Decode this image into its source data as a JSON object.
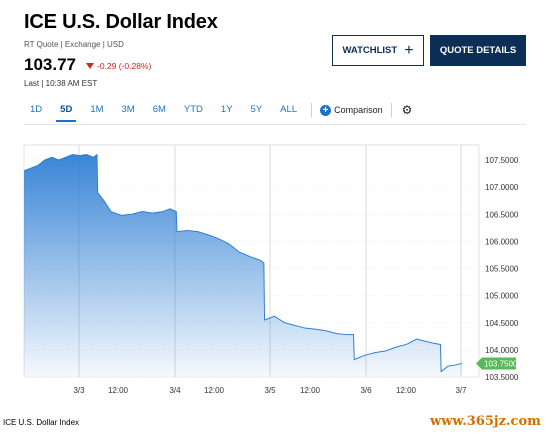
{
  "header": {
    "title": "ICE U.S. Dollar Index",
    "subtitle": "RT Quote | Exchange | USD",
    "price": "103.77",
    "change": "-0.29 (-0.28%)",
    "last_label": "Last | 10:38 AM EST",
    "change_color": "#d0271d"
  },
  "buttons": {
    "watchlist": "WATCHLIST",
    "watchlist_icon": "plus-icon",
    "quote_details": "QUOTE DETAILS",
    "brand_color": "#0c2e57"
  },
  "tabs": {
    "items": [
      "1D",
      "5D",
      "1M",
      "3M",
      "6M",
      "YTD",
      "1Y",
      "5Y",
      "ALL"
    ],
    "active": "5D",
    "comparison": "Comparison",
    "settings_icon": "gear-icon"
  },
  "chart_data": {
    "type": "area",
    "y_ticks": [
      "107.5000",
      "107.0000",
      "106.5000",
      "106.0000",
      "105.5000",
      "105.0000",
      "104.5000",
      "104.0000",
      "103.5000"
    ],
    "x_ticks": [
      "3/3",
      "12:00",
      "3/4",
      "12:00",
      "3/5",
      "12:00",
      "3/6",
      "12:00",
      "3/7"
    ],
    "ylim": [
      103.5,
      107.5
    ],
    "current_value_label": "103.7500",
    "line_color": "#2f7fd4",
    "current_label_color": "#58b85a",
    "series": [
      {
        "values": [
          [
            0.0,
            107.3
          ],
          [
            1.0,
            107.35
          ],
          [
            2.0,
            107.4
          ],
          [
            3.0,
            107.5
          ],
          [
            4.0,
            107.55
          ],
          [
            5.0,
            107.5
          ],
          [
            6.0,
            107.55
          ],
          [
            7.0,
            107.6
          ],
          [
            8.0,
            107.58
          ],
          [
            9.0,
            107.6
          ],
          [
            10.0,
            107.55
          ],
          [
            10.5,
            107.6
          ],
          [
            10.6,
            106.9
          ],
          [
            11.5,
            106.75
          ],
          [
            12.5,
            106.55
          ],
          [
            14.0,
            106.48
          ],
          [
            15.5,
            106.5
          ],
          [
            17.0,
            106.55
          ],
          [
            18.5,
            106.52
          ],
          [
            20.0,
            106.55
          ],
          [
            21.0,
            106.6
          ],
          [
            21.9,
            106.55
          ],
          [
            22.0,
            106.18
          ],
          [
            23.5,
            106.2
          ],
          [
            25.0,
            106.18
          ],
          [
            26.5,
            106.12
          ],
          [
            28.0,
            106.05
          ],
          [
            29.5,
            105.95
          ],
          [
            31.0,
            105.8
          ],
          [
            32.5,
            105.72
          ],
          [
            34.0,
            105.65
          ],
          [
            34.5,
            105.6
          ],
          [
            34.6,
            104.55
          ],
          [
            36.0,
            104.62
          ],
          [
            37.5,
            104.5
          ],
          [
            39.0,
            104.45
          ],
          [
            40.5,
            104.4
          ],
          [
            42.0,
            104.38
          ],
          [
            43.5,
            104.35
          ],
          [
            45.0,
            104.3
          ],
          [
            46.5,
            104.28
          ],
          [
            47.4,
            104.28
          ],
          [
            47.5,
            103.82
          ],
          [
            49.0,
            103.9
          ],
          [
            50.5,
            103.95
          ],
          [
            52.0,
            103.98
          ],
          [
            53.5,
            104.05
          ],
          [
            55.0,
            104.1
          ],
          [
            56.5,
            104.2
          ],
          [
            58.0,
            104.15
          ],
          [
            59.0,
            104.12
          ],
          [
            59.9,
            104.1
          ],
          [
            60.0,
            103.6
          ],
          [
            61.0,
            103.7
          ],
          [
            62.0,
            103.72
          ],
          [
            63.0,
            103.75
          ]
        ]
      }
    ]
  },
  "footer": {
    "label": "ICE U.S. Dollar Index",
    "watermark": "www.365jz.com"
  }
}
